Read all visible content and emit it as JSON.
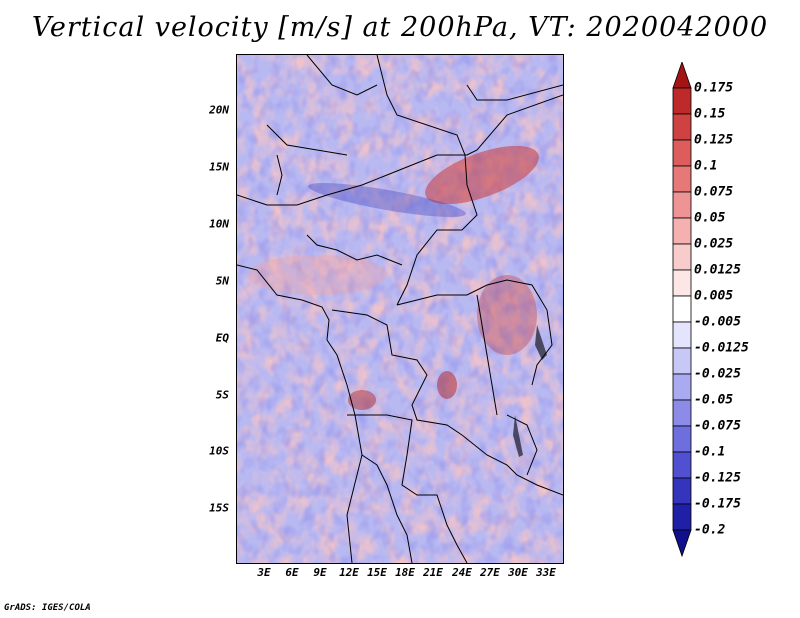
{
  "title": "Vertical velocity [m/s] at 200hPa, VT: 2020042000",
  "credit": "GrADS: IGES/COLA",
  "map": {
    "lat_labels": [
      "20N",
      "15N",
      "10N",
      "5N",
      "EQ",
      "5S",
      "10S",
      "15S"
    ],
    "lon_labels": [
      "3E",
      "6E",
      "9E",
      "12E",
      "15E",
      "18E",
      "21E",
      "24E",
      "27E",
      "30E",
      "33E"
    ]
  },
  "colorbar": {
    "labels": [
      "0.175",
      "0.15",
      "0.125",
      "0.1",
      "0.075",
      "0.05",
      "0.025",
      "0.0125",
      "0.005",
      "-0.005",
      "-0.0125",
      "-0.025",
      "-0.05",
      "-0.075",
      "-0.1",
      "-0.125",
      "-0.175",
      "-0.2"
    ],
    "colors": [
      "#a51414",
      "#be2a2a",
      "#cf4242",
      "#dd5c5c",
      "#e77878",
      "#ef9494",
      "#f5b0b0",
      "#f9cccc",
      "#fde6e6",
      "#ffffff",
      "#e4e4fc",
      "#c8c8f6",
      "#aaaaf0",
      "#8c8ce8",
      "#6e6ede",
      "#5050d0",
      "#3434bc",
      "#2020a6",
      "#10108c"
    ]
  }
}
